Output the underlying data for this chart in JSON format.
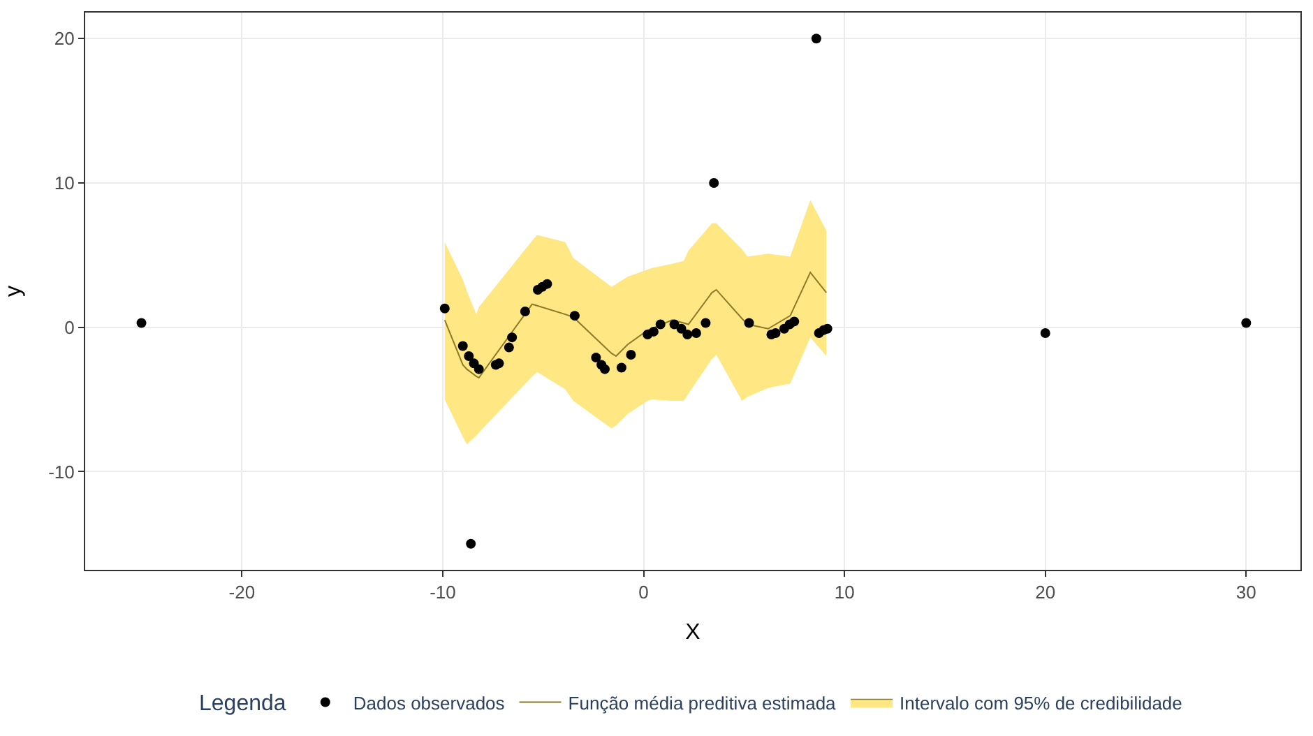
{
  "chart_data": {
    "type": "scatter",
    "xlabel": "X",
    "ylabel": "y",
    "legend_title": "Legenda",
    "legend": "bottom",
    "grid": true,
    "xlim": [
      -27.8,
      32.7
    ],
    "ylim": [
      -16.8,
      21.8
    ],
    "xticks": [
      -20,
      -10,
      0,
      10,
      20,
      30
    ],
    "yticks": [
      -10,
      0,
      10,
      20
    ],
    "series": [
      {
        "name": "Dados observados",
        "marker": "circle",
        "color": "#000000",
        "x": [
          -25,
          -9.9,
          -9.0,
          -8.7,
          -8.45,
          -8.2,
          -7.36,
          -7.2,
          -6.7,
          -6.55,
          -5.9,
          -5.27,
          -5.04,
          -4.8,
          -3.43,
          -2.37,
          -2.1,
          -1.93,
          -1.1,
          -0.63,
          0.2,
          0.5,
          0.84,
          1.53,
          1.88,
          2.18,
          2.62,
          3.09,
          5.25,
          6.36,
          6.57,
          7.0,
          7.27,
          7.5,
          8.73,
          8.96,
          9.15,
          8.6,
          3.5,
          -8.6,
          20,
          30
        ],
        "values": [
          0.3,
          1.3,
          -1.3,
          -2.0,
          -2.5,
          -2.9,
          -2.6,
          -2.5,
          -1.4,
          -0.7,
          1.1,
          2.6,
          2.8,
          3.0,
          0.8,
          -2.1,
          -2.6,
          -2.9,
          -2.8,
          -1.9,
          -0.5,
          -0.3,
          0.2,
          0.2,
          -0.1,
          -0.5,
          -0.4,
          0.3,
          0.3,
          -0.5,
          -0.4,
          -0.1,
          0.2,
          0.4,
          -0.4,
          -0.2,
          -0.1,
          20,
          10,
          -15,
          -0.4,
          0.3
        ]
      },
      {
        "name": "Função média preditiva estimada",
        "type": "line",
        "marker": "none",
        "color": "#8c7a28",
        "x": [
          -9.9,
          -9.0,
          -8.8,
          -8.33,
          -8.2,
          -5.55,
          -5.3,
          -3.9,
          -3.5,
          -1.6,
          -1.37,
          -0.8,
          0.2,
          0.4,
          1.42,
          2.0,
          2.23,
          3.4,
          3.62,
          4.9,
          5.18,
          6.2,
          7.3,
          8.3,
          9.1
        ],
        "values": [
          0.5,
          -2.6,
          -2.9,
          -3.4,
          -3.5,
          1.6,
          1.5,
          0.9,
          0.7,
          -1.8,
          -2.0,
          -1.2,
          -0.2,
          -0.1,
          0.5,
          0.3,
          0.2,
          2.4,
          2.6,
          0.6,
          0.2,
          -0.1,
          0.8,
          3.8,
          2.4
        ],
        "upper": [
          5.9,
          3.3,
          2.5,
          0.9,
          1.4,
          6.0,
          6.4,
          5.9,
          4.8,
          2.8,
          3.0,
          3.5,
          4.0,
          4.1,
          4.4,
          4.6,
          5.3,
          7.2,
          7.2,
          5.4,
          4.9,
          5.1,
          4.9,
          8.8,
          6.7
        ],
        "lower": [
          -5.0,
          -7.6,
          -8.1,
          -7.5,
          -7.3,
          -3.4,
          -3.1,
          -4.3,
          -5.1,
          -7.0,
          -6.8,
          -6.0,
          -5.1,
          -5.0,
          -5.1,
          -5.1,
          -4.6,
          -2.2,
          -1.9,
          -5.1,
          -4.8,
          -4.2,
          -3.9,
          -0.7,
          -2.0
        ]
      },
      {
        "name": "Intervalo com 95% de credibilidade",
        "type": "area",
        "color": "#ffe784"
      }
    ]
  }
}
